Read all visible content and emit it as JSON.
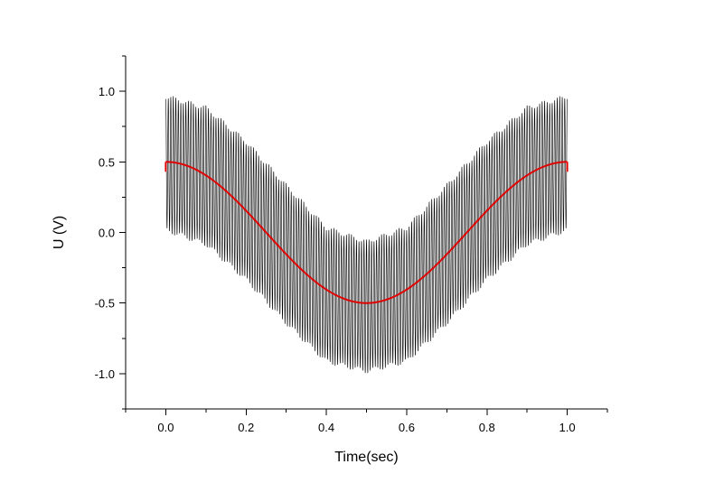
{
  "chart_data": {
    "type": "line",
    "xlabel": "Time(sec)",
    "ylabel": "U (V)",
    "xlim": [
      -0.1,
      1.1
    ],
    "ylim": [
      -1.25,
      1.25
    ],
    "x_ticks": [
      "0.0",
      "0.2",
      "0.4",
      "0.6",
      "0.8",
      "1.0"
    ],
    "x_tick_values": [
      0.0,
      0.2,
      0.4,
      0.6,
      0.8,
      1.0
    ],
    "y_ticks": [
      "1.0",
      "0.5",
      "0.0",
      "-0.5",
      "-1.0"
    ],
    "y_tick_values": [
      1.0,
      0.5,
      0.0,
      -0.5,
      -1.0
    ],
    "grid": false,
    "series": [
      {
        "color": "#000000",
        "description_x": [
          0.0,
          0.1,
          0.2,
          0.3,
          0.4,
          0.5,
          0.6,
          0.7,
          0.8,
          0.9,
          1.0
        ],
        "upper_envelope": [
          0.98,
          0.9,
          0.66,
          0.35,
          0.05,
          -0.05,
          0.05,
          0.35,
          0.66,
          0.9,
          0.98
        ],
        "lower_envelope": [
          0.0,
          -0.1,
          -0.35,
          -0.66,
          -0.93,
          -1.0,
          -0.93,
          -0.66,
          -0.35,
          -0.1,
          0.0
        ],
        "carrier_periods": 160,
        "beat_periods": 25
      },
      {
        "color": "#e00000",
        "x": [
          0.0,
          0.1,
          0.2,
          0.3,
          0.4,
          0.5,
          0.6,
          0.7,
          0.8,
          0.9,
          1.0
        ],
        "y": [
          0.5,
          0.4,
          0.15,
          -0.15,
          -0.4,
          -0.5,
          -0.4,
          -0.15,
          0.15,
          0.4,
          0.5
        ]
      }
    ]
  }
}
